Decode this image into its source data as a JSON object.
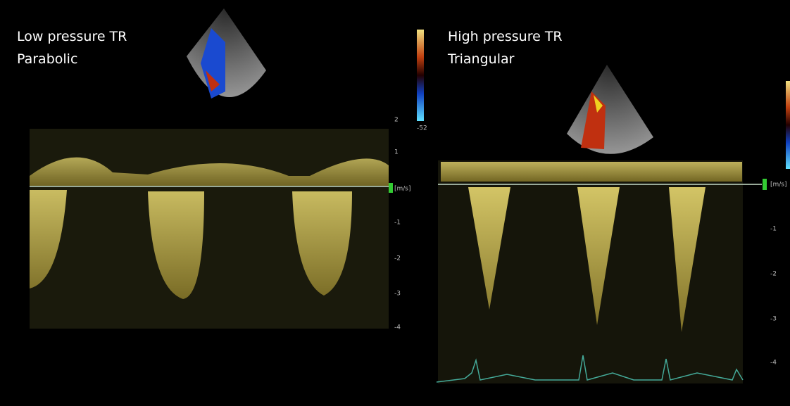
{
  "panels": [
    {
      "title": "Low pressure TR",
      "subtitle": "Parabolic",
      "color_bar_label": "-52",
      "scale_labels": [
        "2",
        "1",
        "[m/s]",
        "-1",
        "-2",
        "-3",
        "-4"
      ]
    },
    {
      "title": "High pressure TR",
      "subtitle": "Triangular",
      "scale_labels": [
        "[m/s]",
        "-1",
        "-2",
        "-3",
        "-4"
      ]
    }
  ]
}
